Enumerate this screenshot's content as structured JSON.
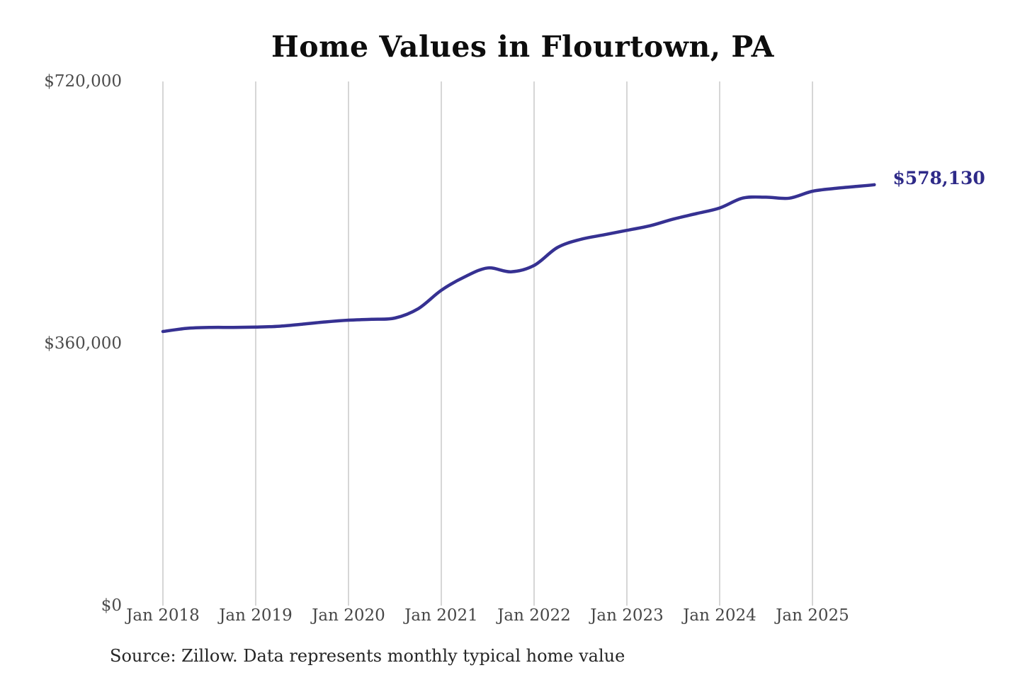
{
  "colors": {
    "line": "#363192",
    "end_label": "#2e2a88",
    "gridline": "#c9c9c9",
    "tick_text": "#4c4c4c",
    "title_text": "#0d0d0d",
    "source_text": "#262626",
    "background": "#ffffff"
  },
  "chart_data": {
    "type": "line",
    "title": "Home Values in Flourtown, PA",
    "source_note": "Source: Zillow. Data represents monthly typical home value",
    "end_label": "$578,130",
    "series_name": "Typical home value",
    "ylim": [
      0,
      720000
    ],
    "y_ticks": [
      {
        "label": "$720,000",
        "value": 720000
      },
      {
        "label": "$360,000",
        "value": 360000
      },
      {
        "label": "$0",
        "value": 0
      }
    ],
    "x_ticks": [
      {
        "label": "Jan 2018",
        "date": "2018-01"
      },
      {
        "label": "Jan 2019",
        "date": "2019-01"
      },
      {
        "label": "Jan 2020",
        "date": "2020-01"
      },
      {
        "label": "Jan 2021",
        "date": "2021-01"
      },
      {
        "label": "Jan 2022",
        "date": "2022-01"
      },
      {
        "label": "Jan 2023",
        "date": "2023-01"
      },
      {
        "label": "Jan 2024",
        "date": "2024-01"
      },
      {
        "label": "Jan 2025",
        "date": "2025-01"
      }
    ],
    "grid": "vertical-only",
    "legend": "none",
    "points": [
      {
        "date": "2018-01",
        "value": 376500
      },
      {
        "date": "2018-04",
        "value": 380800
      },
      {
        "date": "2018-07",
        "value": 382100
      },
      {
        "date": "2018-10",
        "value": 382200
      },
      {
        "date": "2019-01",
        "value": 382600
      },
      {
        "date": "2019-04",
        "value": 383700
      },
      {
        "date": "2019-07",
        "value": 386600
      },
      {
        "date": "2019-10",
        "value": 389700
      },
      {
        "date": "2020-01",
        "value": 392100
      },
      {
        "date": "2020-04",
        "value": 393300
      },
      {
        "date": "2020-07",
        "value": 395000
      },
      {
        "date": "2020-10",
        "value": 407800
      },
      {
        "date": "2021-01",
        "value": 433200
      },
      {
        "date": "2021-04",
        "value": 451500
      },
      {
        "date": "2021-07",
        "value": 463800
      },
      {
        "date": "2021-10",
        "value": 458600
      },
      {
        "date": "2022-01",
        "value": 467200
      },
      {
        "date": "2022-04",
        "value": 491800
      },
      {
        "date": "2022-07",
        "value": 503000
      },
      {
        "date": "2022-10",
        "value": 509300
      },
      {
        "date": "2023-01",
        "value": 515500
      },
      {
        "date": "2023-04",
        "value": 521800
      },
      {
        "date": "2023-07",
        "value": 531000
      },
      {
        "date": "2023-10",
        "value": 538500
      },
      {
        "date": "2024-01",
        "value": 546200
      },
      {
        "date": "2024-04",
        "value": 559800
      },
      {
        "date": "2024-07",
        "value": 561000
      },
      {
        "date": "2024-10",
        "value": 559700
      },
      {
        "date": "2025-01",
        "value": 569200
      },
      {
        "date": "2025-04",
        "value": 573200
      },
      {
        "date": "2025-07",
        "value": 576100
      },
      {
        "date": "2025-09",
        "value": 578130
      }
    ]
  }
}
